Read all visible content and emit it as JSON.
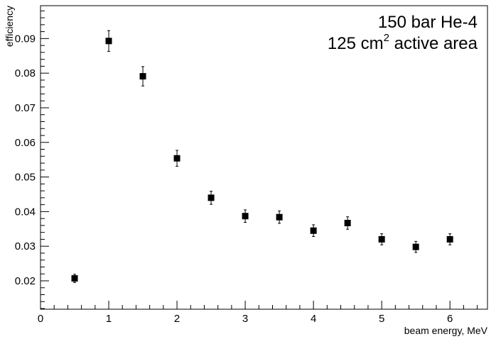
{
  "chart_data": {
    "type": "scatter",
    "xlabel": "beam energy, MeV",
    "ylabel": "efficiency",
    "xlim": [
      0,
      6.55
    ],
    "ylim": [
      0.0118,
      0.0995
    ],
    "x_ticks": [
      0,
      1,
      2,
      3,
      4,
      5,
      6
    ],
    "x_tick_labels": [
      "0",
      "1",
      "2",
      "3",
      "4",
      "5",
      "6"
    ],
    "y_ticks": [
      0.02,
      0.03,
      0.04,
      0.05,
      0.06,
      0.07,
      0.08,
      0.09
    ],
    "y_tick_labels": [
      "0.02",
      "0.03",
      "0.04",
      "0.05",
      "0.06",
      "0.07",
      "0.08",
      "0.09"
    ],
    "grid": false,
    "annotations": {
      "line1": "150 bar He-4",
      "line2_prefix": "125 cm",
      "line2_sup": "2",
      "line2_suffix": " active area"
    },
    "series": [
      {
        "marker": "square",
        "color": "#000000",
        "points": [
          {
            "x": 0.5,
            "y": 0.0207,
            "err": 0.0012
          },
          {
            "x": 1.0,
            "y": 0.0893,
            "err": 0.003
          },
          {
            "x": 1.5,
            "y": 0.0791,
            "err": 0.0028
          },
          {
            "x": 2.0,
            "y": 0.0554,
            "err": 0.0023
          },
          {
            "x": 2.5,
            "y": 0.044,
            "err": 0.0019
          },
          {
            "x": 3.0,
            "y": 0.0387,
            "err": 0.0018
          },
          {
            "x": 3.5,
            "y": 0.0384,
            "err": 0.0018
          },
          {
            "x": 4.0,
            "y": 0.0345,
            "err": 0.0017
          },
          {
            "x": 4.5,
            "y": 0.0367,
            "err": 0.0018
          },
          {
            "x": 5.0,
            "y": 0.032,
            "err": 0.0016
          },
          {
            "x": 5.5,
            "y": 0.0298,
            "err": 0.0016
          },
          {
            "x": 6.0,
            "y": 0.032,
            "err": 0.0016
          }
        ]
      }
    ]
  }
}
